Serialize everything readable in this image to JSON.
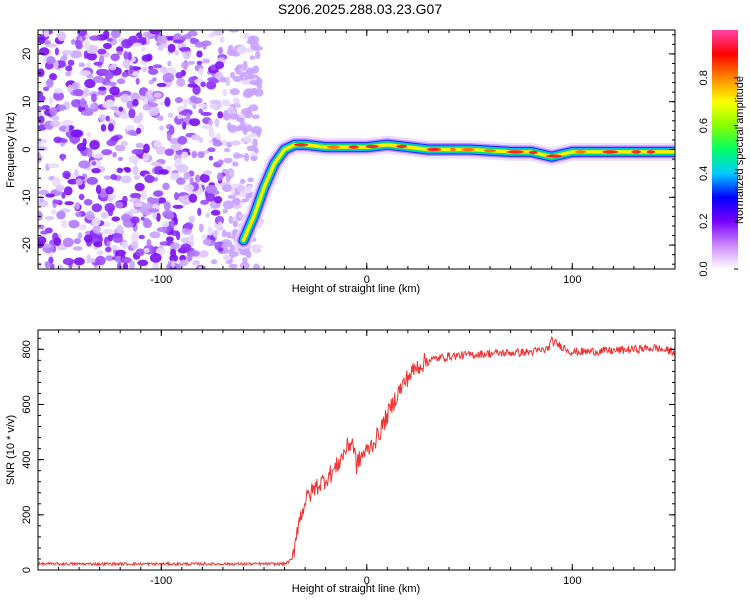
{
  "page_title": "S206.2025.288.03.23.G07",
  "chart_data": [
    {
      "type": "heatmap",
      "title": "S206.2025.288.03.23.G07",
      "xlabel": "Height of straight line (km)",
      "ylabel": "Frequency (Hz)",
      "xlim": [
        -160,
        150
      ],
      "ylim": [
        -25,
        25
      ],
      "xticks": [
        -100,
        0,
        100
      ],
      "yticks": [
        -20,
        -10,
        0,
        10,
        20
      ],
      "colorbar": {
        "label": "Normalized spectral amplitude",
        "range": [
          0,
          1
        ],
        "ticks": [
          "0.0",
          "0.2",
          "0.4",
          "0.6",
          "0.8"
        ],
        "colors": [
          "#ffffff",
          "#cc88ff",
          "#7700ff",
          "#0000ff",
          "#00ccff",
          "#00ff66",
          "#88ff00",
          "#ffff00",
          "#ff8800",
          "#ff0000",
          "#ff44aa"
        ]
      },
      "noise_region_x": [
        -160,
        -60
      ],
      "ridge": {
        "x": [
          -60,
          -55,
          -50,
          -45,
          -40,
          -35,
          -30,
          -20,
          -10,
          0,
          10,
          20,
          30,
          50,
          70,
          80,
          90,
          100,
          120,
          150
        ],
        "y": [
          -19,
          -14,
          -8,
          -3,
          0,
          1,
          1,
          0.5,
          0.5,
          0.5,
          1,
          0.5,
          0,
          0,
          -0.5,
          -0.5,
          -1.5,
          -0.5,
          -0.5,
          -0.5
        ]
      }
    },
    {
      "type": "line",
      "xlabel": "Height of straight line (km)",
      "ylabel": "SNR (10 * v/v)",
      "xlim": [
        -160,
        150
      ],
      "ylim": [
        0,
        870
      ],
      "xticks": [
        -100,
        0,
        100
      ],
      "yticks": [
        0,
        200,
        400,
        600,
        800
      ],
      "series": [
        {
          "name": "SNR",
          "color": "#ee3333",
          "x": [
            -160,
            -40,
            -36,
            -34,
            -30,
            -25,
            -20,
            -15,
            -10,
            -7,
            -5,
            -2,
            0,
            5,
            10,
            15,
            20,
            25,
            30,
            40,
            50,
            60,
            80,
            88,
            90,
            100,
            120,
            140,
            150
          ],
          "y": [
            22,
            22,
            40,
            150,
            250,
            300,
            330,
            370,
            440,
            470,
            380,
            420,
            430,
            480,
            560,
            640,
            700,
            740,
            760,
            775,
            780,
            785,
            790,
            800,
            830,
            790,
            795,
            805,
            790
          ]
        }
      ]
    }
  ]
}
